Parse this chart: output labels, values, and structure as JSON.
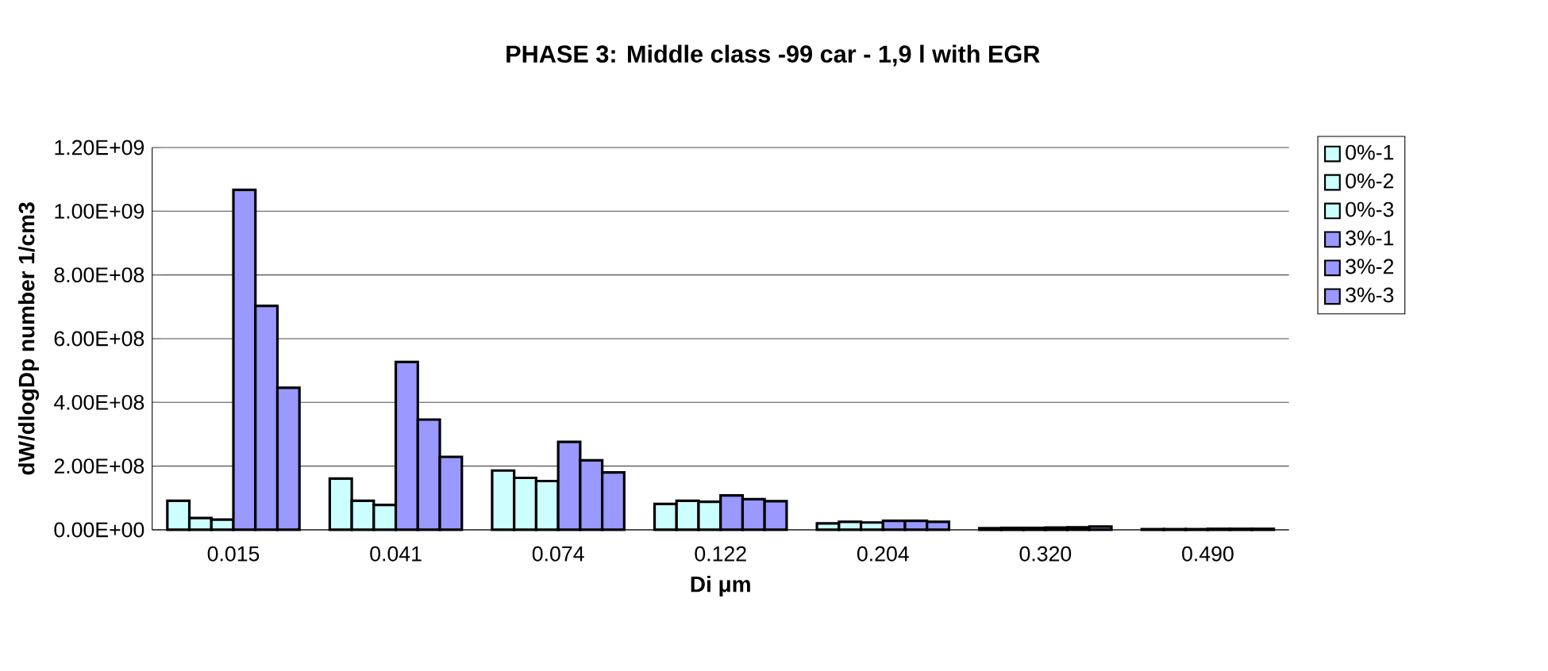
{
  "chart_data": {
    "type": "bar",
    "title": "PHASE 3: Middle class -99 car - 1,9 l with EGR",
    "xlabel": "Di μm",
    "ylabel": "dW/dlogDp number 1/cm3",
    "categories": [
      "0.015",
      "0.041",
      "0.074",
      "0.122",
      "0.204",
      "0.320",
      "0.490"
    ],
    "series": [
      {
        "name": "0%-1",
        "color": "#ccffff",
        "values": [
          91000000,
          161000000,
          186000000,
          81000000,
          20000000,
          5000000,
          2000000
        ]
      },
      {
        "name": "0%-2",
        "color": "#ccffff",
        "values": [
          37000000,
          91000000,
          163000000,
          91000000,
          25000000,
          6000000,
          2000000
        ]
      },
      {
        "name": "0%-3",
        "color": "#ccffff",
        "values": [
          32000000,
          78000000,
          153000000,
          88000000,
          23000000,
          6000000,
          2000000
        ]
      },
      {
        "name": "3%-1",
        "color": "#9999ff",
        "values": [
          1067000000,
          527000000,
          276000000,
          108000000,
          28000000,
          7000000,
          3000000
        ]
      },
      {
        "name": "3%-2",
        "color": "#9999ff",
        "values": [
          703000000,
          346000000,
          218000000,
          96000000,
          28000000,
          8000000,
          3000000
        ]
      },
      {
        "name": "3%-3",
        "color": "#9999ff",
        "values": [
          446000000,
          229000000,
          180000000,
          90000000,
          25000000,
          10000000,
          3000000
        ]
      }
    ],
    "ylim": [
      0,
      1200000000
    ],
    "yticks": [
      {
        "value": 0,
        "label": "0.00E+00"
      },
      {
        "value": 200000000,
        "label": "2.00E+08"
      },
      {
        "value": 400000000,
        "label": "4.00E+08"
      },
      {
        "value": 600000000,
        "label": "6.00E+08"
      },
      {
        "value": 800000000,
        "label": "8.00E+08"
      },
      {
        "value": 1000000000,
        "label": "1.00E+09"
      },
      {
        "value": 1200000000,
        "label": "1.20E+09"
      }
    ],
    "grid": "y",
    "legend": "right"
  }
}
